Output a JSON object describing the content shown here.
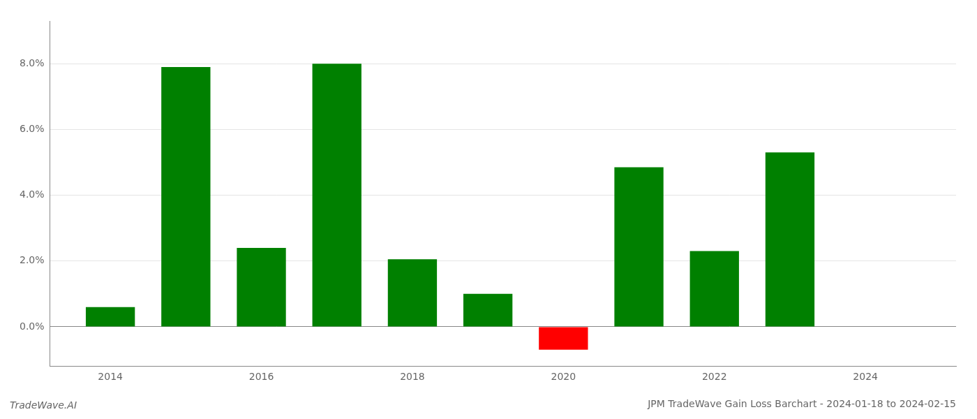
{
  "chart_data": {
    "type": "bar",
    "title": "JPM TradeWave Gain Loss Barchart - 2024-01-18 to 2024-02-15",
    "annotations": [
      "TradeWave.AI"
    ],
    "x": [
      2014,
      2015,
      2016,
      2017,
      2018,
      2019,
      2020,
      2021,
      2022,
      2023,
      2024
    ],
    "values": [
      0.006,
      0.079,
      0.024,
      0.08,
      0.0205,
      0.01,
      -0.007,
      0.0485,
      0.023,
      0.053,
      0.0
    ],
    "colors": [
      "#008000",
      "#008000",
      "#008000",
      "#008000",
      "#008000",
      "#008000",
      "#ff0000",
      "#008000",
      "#008000",
      "#008000",
      "#008000"
    ],
    "xlim": [
      2013.2,
      2025.2
    ],
    "xticks": [
      2014,
      2016,
      2018,
      2020,
      2022,
      2024
    ],
    "ylim": [
      -0.012,
      0.093
    ],
    "yticks": [
      {
        "value": 0,
        "label": "0.0%"
      },
      {
        "value": 0.02,
        "label": "2.0%"
      },
      {
        "value": 0.04,
        "label": "4.0%"
      },
      {
        "value": 0.06,
        "label": "6.0%"
      },
      {
        "value": 0.08,
        "label": "8.0%"
      }
    ],
    "grid": "y"
  }
}
